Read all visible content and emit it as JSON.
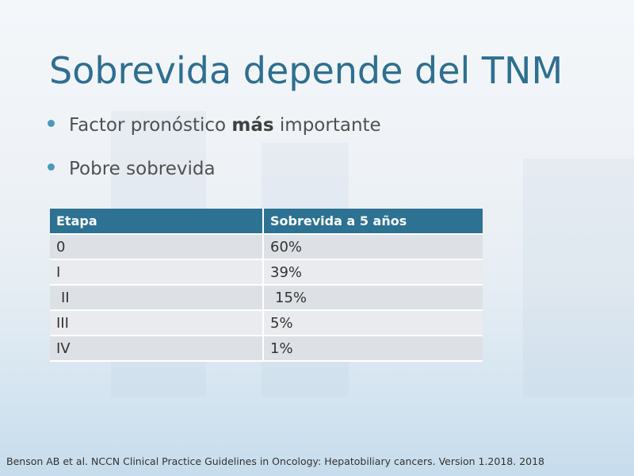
{
  "header": {
    "title": "Sobrevida depende del TNM"
  },
  "bullets": [
    {
      "parts": [
        "Factor pronóstico ",
        "más",
        " importante"
      ]
    },
    {
      "parts": [
        "Pobre sobrevida"
      ]
    }
  ],
  "table": {
    "columns": [
      "Etapa",
      "Sobrevida a 5 años"
    ],
    "rows": [
      [
        "0",
        "60%"
      ],
      [
        "I",
        "39%"
      ],
      [
        "II",
        "15%"
      ],
      [
        "III",
        "5%"
      ],
      [
        "IV",
        "1%"
      ]
    ]
  },
  "footer": {
    "citation": "Benson AB et al.  NCCN Clinical  Practice Guidelines in Oncology: Hepatobiliary cancers. Version 1.2018.  2018"
  }
}
